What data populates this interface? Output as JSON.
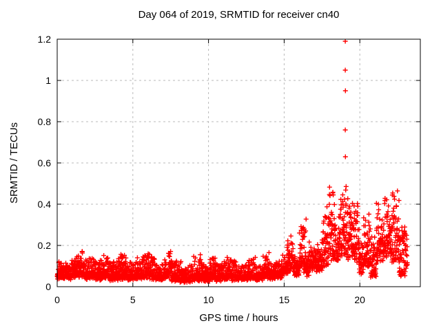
{
  "figure": {
    "background": "#ffffff",
    "text_color": "#000000"
  },
  "chart_data": {
    "type": "scatter",
    "title": "Day 064 of 2019, SRMTID for receiver cn40",
    "xlabel": "GPS time / hours",
    "ylabel": "SRMTID / TECUs",
    "xlim": [
      0,
      24
    ],
    "ylim": [
      0,
      1.2
    ],
    "xticks": [
      0,
      5,
      10,
      15,
      20
    ],
    "xtick_labels": [
      "0",
      "5",
      "10",
      "15",
      "20"
    ],
    "yticks": [
      0,
      0.2,
      0.4,
      0.6,
      0.8,
      1,
      1.2
    ],
    "ytick_labels": [
      "0",
      "0.2",
      "0.4",
      "0.6",
      "0.8",
      "1",
      "1.2"
    ],
    "grid": true,
    "legend": "none",
    "marker": {
      "shape": "plus",
      "color": "#ff0000",
      "size": 7,
      "stroke_width": 1.4
    },
    "axis_color": "#000000",
    "grid_color": "#b9b9b9",
    "sampling_hours": 0.008333,
    "seed": 20190640,
    "series_name": "SRMTID",
    "data_span_hours": [
      0,
      23.15
    ],
    "segments": [
      [
        0.0,
        0.9,
        0.045,
        0.115,
        2.2
      ],
      [
        0.9,
        1.3,
        0.05,
        0.13,
        2.0
      ],
      [
        1.3,
        1.7,
        0.05,
        0.175,
        1.6
      ],
      [
        1.7,
        2.1,
        0.045,
        0.12,
        2.2
      ],
      [
        2.1,
        2.5,
        0.05,
        0.15,
        2.0
      ],
      [
        2.5,
        3.0,
        0.04,
        0.12,
        2.2
      ],
      [
        3.0,
        3.4,
        0.045,
        0.15,
        2.0
      ],
      [
        3.4,
        4.2,
        0.04,
        0.13,
        2.2
      ],
      [
        4.2,
        4.6,
        0.045,
        0.15,
        2.0
      ],
      [
        4.6,
        5.2,
        0.04,
        0.12,
        2.4
      ],
      [
        5.2,
        5.7,
        0.045,
        0.135,
        2.0
      ],
      [
        5.7,
        6.1,
        0.05,
        0.155,
        1.9
      ],
      [
        6.1,
        6.5,
        0.04,
        0.145,
        2.1
      ],
      [
        6.5,
        7.0,
        0.04,
        0.11,
        2.4
      ],
      [
        7.0,
        7.35,
        0.045,
        0.13,
        2.0
      ],
      [
        7.35,
        7.55,
        0.05,
        0.235,
        1.3
      ],
      [
        7.55,
        8.2,
        0.03,
        0.125,
        2.3
      ],
      [
        8.2,
        9.0,
        0.03,
        0.1,
        2.6
      ],
      [
        9.0,
        9.5,
        0.035,
        0.155,
        2.0
      ],
      [
        9.5,
        10.1,
        0.035,
        0.11,
        2.4
      ],
      [
        10.1,
        10.5,
        0.04,
        0.155,
        2.0
      ],
      [
        10.5,
        11.0,
        0.035,
        0.11,
        2.4
      ],
      [
        11.0,
        11.8,
        0.04,
        0.14,
        2.1
      ],
      [
        11.8,
        12.6,
        0.04,
        0.1,
        2.6
      ],
      [
        12.6,
        13.1,
        0.045,
        0.14,
        2.1
      ],
      [
        13.1,
        13.6,
        0.04,
        0.1,
        2.6
      ],
      [
        13.6,
        14.0,
        0.05,
        0.16,
        1.8
      ],
      [
        14.0,
        14.4,
        0.04,
        0.11,
        2.4
      ],
      [
        14.4,
        14.85,
        0.05,
        0.12,
        2.2
      ],
      [
        14.85,
        15.2,
        0.07,
        0.15,
        1.8
      ],
      [
        15.2,
        15.65,
        0.07,
        0.25,
        1.35
      ],
      [
        15.65,
        16.0,
        0.06,
        0.15,
        1.9
      ],
      [
        16.0,
        16.45,
        0.08,
        0.345,
        1.2
      ],
      [
        16.45,
        16.65,
        0.06,
        0.14,
        1.8
      ],
      [
        16.65,
        17.1,
        0.09,
        0.22,
        1.5
      ],
      [
        17.1,
        17.5,
        0.08,
        0.2,
        1.6
      ],
      [
        17.5,
        17.95,
        0.1,
        0.4,
        1.2
      ],
      [
        17.95,
        18.4,
        0.13,
        0.51,
        1.15
      ],
      [
        18.4,
        18.6,
        0.12,
        0.3,
        1.4
      ],
      [
        18.6,
        19.1,
        0.15,
        0.53,
        1.1
      ],
      [
        19.1,
        19.6,
        0.14,
        0.43,
        1.2
      ],
      [
        19.6,
        19.95,
        0.12,
        0.42,
        1.25
      ],
      [
        19.95,
        20.25,
        0.07,
        0.22,
        1.6
      ],
      [
        20.25,
        20.7,
        0.1,
        0.35,
        1.3
      ],
      [
        20.7,
        21.1,
        0.05,
        0.26,
        1.5
      ],
      [
        21.1,
        21.6,
        0.12,
        0.43,
        1.2
      ],
      [
        21.6,
        22.05,
        0.15,
        0.45,
        1.25
      ],
      [
        22.05,
        22.6,
        0.12,
        0.52,
        1.15
      ],
      [
        22.6,
        23.0,
        0.06,
        0.3,
        1.6
      ],
      [
        23.0,
        23.15,
        0.1,
        0.27,
        1.4
      ]
    ],
    "outliers": [
      [
        19.04,
        1.19
      ],
      [
        19.04,
        1.05
      ],
      [
        19.05,
        0.95
      ],
      [
        19.04,
        0.76
      ],
      [
        19.05,
        0.63
      ]
    ]
  }
}
